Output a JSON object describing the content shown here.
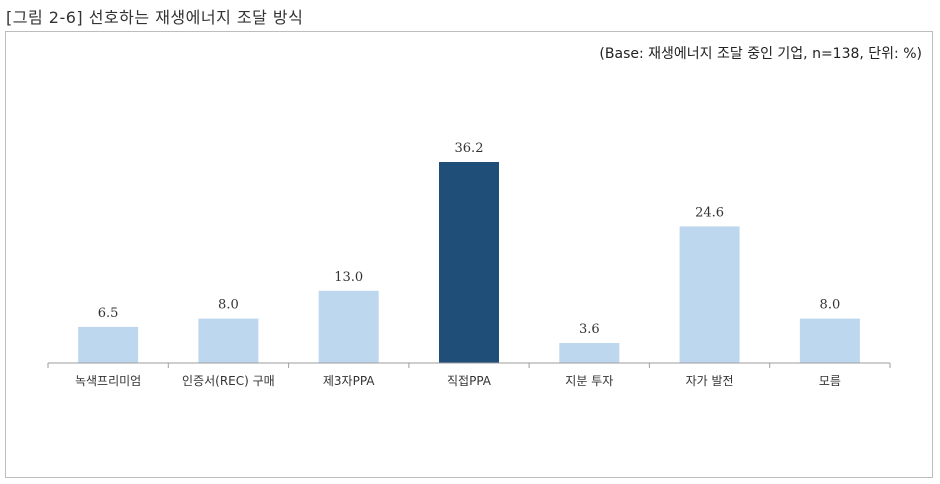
{
  "figure": {
    "title": "[그림 2-6] 선호하는 재생에너지 조달 방식",
    "base_note": "(Base: 재생에너지 조달 중인 기업, n=138, 단위: %)"
  },
  "colors": {
    "bar_default": "#bdd7ee",
    "bar_highlight": "#1f4e79",
    "axis": "#9e9e9e"
  },
  "chart_data": {
    "type": "bar",
    "title": "선호하는 재생에너지 조달 방식",
    "xlabel": "",
    "ylabel": "",
    "unit": "%",
    "categories": [
      "녹색프리미엄",
      "인증서(REC) 구매",
      "제3자PPA",
      "직접PPA",
      "지분 투자",
      "자가 발전",
      "모름"
    ],
    "values": [
      6.5,
      8.0,
      13.0,
      36.2,
      3.6,
      24.6,
      8.0
    ],
    "value_labels": [
      "6.5",
      "8.0",
      "13.0",
      "36.2",
      "3.6",
      "24.6",
      "8.0"
    ],
    "highlight_index": 3,
    "ylim": [
      0,
      40
    ],
    "grid": false,
    "legend": "none"
  }
}
